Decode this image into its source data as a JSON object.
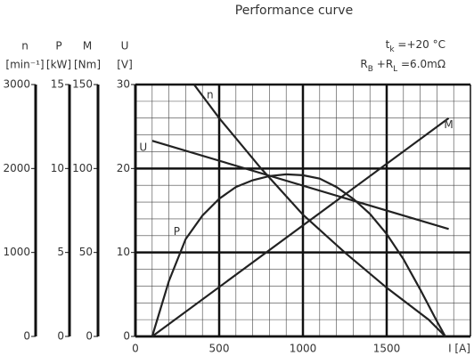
{
  "chart_data": {
    "type": "line",
    "title": "Performance curve",
    "annotations": [
      [
        "t",
        "k",
        " =+20 °C"
      ],
      [
        "R",
        "B",
        " +R",
        "L",
        " =6.0mΩ"
      ]
    ],
    "x_label": "I [A]",
    "xlim": [
      0,
      2000
    ],
    "xticks": [
      0,
      500,
      1000,
      1500
    ],
    "x_minor_step": 100,
    "y_minor_step": 2,
    "grid": true,
    "axes": [
      {
        "name": "n",
        "unit": "[min⁻¹]",
        "ylim": [
          0,
          3000
        ],
        "yticks": [
          0,
          1000,
          2000,
          3000
        ]
      },
      {
        "name": "P",
        "unit": "[kW]",
        "ylim": [
          0,
          15
        ],
        "yticks": [
          0,
          5,
          10,
          15
        ]
      },
      {
        "name": "M",
        "unit": "[Nm]",
        "ylim": [
          0,
          150
        ],
        "yticks": [
          0,
          50,
          100,
          150
        ]
      },
      {
        "name": "U",
        "unit": "[V]",
        "ylim": [
          0,
          30
        ],
        "yticks": [
          0,
          10,
          20,
          30
        ]
      }
    ],
    "series": [
      {
        "name": "n",
        "axis": 0,
        "color": "#222",
        "x": [
          350,
          500,
          750,
          1000,
          1250,
          1500,
          1750,
          1850
        ],
        "values": [
          3000,
          2600,
          2000,
          1450,
          1000,
          580,
          200,
          0
        ]
      },
      {
        "name": "U",
        "axis": 3,
        "color": "#222",
        "x": [
          100,
          1870
        ],
        "values": [
          23.3,
          12.8
        ]
      },
      {
        "name": "P",
        "axis": 1,
        "color": "#222",
        "x": [
          100,
          200,
          300,
          400,
          500,
          600,
          700,
          800,
          900,
          1000,
          1100,
          1200,
          1300,
          1400,
          1500,
          1600,
          1700,
          1800,
          1850
        ],
        "values": [
          0,
          3.3,
          5.8,
          7.2,
          8.2,
          8.9,
          9.3,
          9.55,
          9.65,
          9.6,
          9.4,
          8.9,
          8.2,
          7.3,
          6.1,
          4.6,
          2.8,
          0.9,
          0
        ]
      },
      {
        "name": "M",
        "axis": 2,
        "color": "#222",
        "x": [
          100,
          1870
        ],
        "values": [
          0,
          130
        ]
      }
    ]
  }
}
